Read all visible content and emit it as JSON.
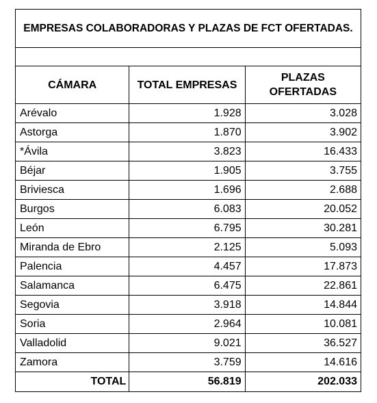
{
  "title": "EMPRESAS COLABORADORAS Y PLAZAS DE FCT OFERTADAS.",
  "headers": {
    "camara": "CÁMARA",
    "total_empresas": "TOTAL EMPRESAS",
    "plazas_line1": "PLAZAS",
    "plazas_line2": "OFERTADAS"
  },
  "rows": [
    {
      "camara": "Arévalo",
      "empresas": "1.928",
      "plazas": "3.028"
    },
    {
      "camara": "Astorga",
      "empresas": "1.870",
      "plazas": "3.902"
    },
    {
      "camara": "*Ávila",
      "empresas": "3.823",
      "plazas": "16.433"
    },
    {
      "camara": "Béjar",
      "empresas": "1.905",
      "plazas": "3.755"
    },
    {
      "camara": "Briviesca",
      "empresas": "1.696",
      "plazas": "2.688"
    },
    {
      "camara": "Burgos",
      "empresas": "6.083",
      "plazas": "20.052"
    },
    {
      "camara": "León",
      "empresas": "6.795",
      "plazas": "30.281"
    },
    {
      "camara": "Miranda de Ebro",
      "empresas": "2.125",
      "plazas": "5.093"
    },
    {
      "camara": "Palencia",
      "empresas": "4.457",
      "plazas": "17.873"
    },
    {
      "camara": "Salamanca",
      "empresas": "6.475",
      "plazas": "22.861"
    },
    {
      "camara": "Segovia",
      "empresas": "3.918",
      "plazas": "14.844"
    },
    {
      "camara": "Soria",
      "empresas": "2.964",
      "plazas": "10.081"
    },
    {
      "camara": "Valladolid",
      "empresas": "9.021",
      "plazas": "36.527"
    },
    {
      "camara": "Zamora",
      "empresas": "3.759",
      "plazas": "14.616"
    }
  ],
  "total": {
    "label": "TOTAL",
    "empresas": "56.819",
    "plazas": "202.033"
  }
}
